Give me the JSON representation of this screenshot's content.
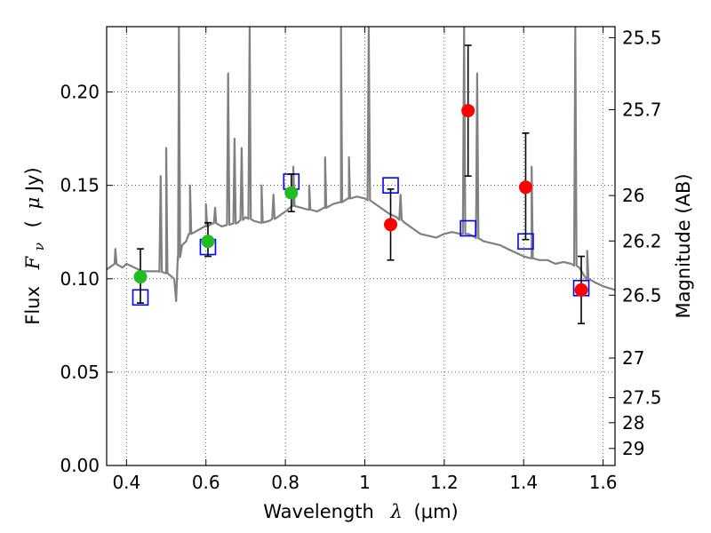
{
  "chart_data": {
    "type": "scatter",
    "xlabel": {
      "text": "Wavelength",
      "symbol": "λ",
      "unit": "(μm)"
    },
    "ylabel": {
      "text": "Flux",
      "symbol": "F",
      "subscript": "ν",
      "unit_open": "(",
      "unit_mu": "μ",
      "unit": "Jy)"
    },
    "y2label": "Magnitude (AB)",
    "xlim": [
      0.35,
      1.63
    ],
    "ylim": [
      0.0,
      0.235
    ],
    "grid": true,
    "x_ticks": [
      "0.4",
      "0.6",
      "0.8",
      "1",
      "1.2",
      "1.4",
      "1.6"
    ],
    "x_tick_values": [
      0.4,
      0.6,
      0.8,
      1.0,
      1.2,
      1.4,
      1.6
    ],
    "y_ticks": [
      "0.00",
      "0.05",
      "0.10",
      "0.15",
      "0.20"
    ],
    "y_tick_values": [
      0.0,
      0.05,
      0.1,
      0.15,
      0.2
    ],
    "y2_ticks": [
      "25.5",
      "25.7",
      "26",
      "26.2",
      "26.5",
      "27",
      "27.5",
      "28",
      "29"
    ],
    "y2_tick_values": [
      25.5,
      25.7,
      26.0,
      26.2,
      26.5,
      27.0,
      27.5,
      28.0,
      29.0
    ],
    "colors": {
      "sed": "#808080",
      "model": "#0000ff",
      "optical": "#22bb22",
      "nir": "#ff0000",
      "errbar": "#000000"
    },
    "series": [
      {
        "kind": "line",
        "x": [
          0.35,
          0.37,
          0.39,
          0.4,
          0.42,
          0.44,
          0.46,
          0.48,
          0.5,
          0.52,
          0.525,
          0.53,
          0.54,
          0.55,
          0.56,
          0.58,
          0.6,
          0.62,
          0.64,
          0.66,
          0.68,
          0.7,
          0.72,
          0.74,
          0.76,
          0.78,
          0.8,
          0.82,
          0.84,
          0.86,
          0.88,
          0.9,
          0.92,
          0.94,
          0.96,
          0.98,
          1.0,
          1.02,
          1.04,
          1.06,
          1.08,
          1.1,
          1.12,
          1.14,
          1.16,
          1.18,
          1.2,
          1.22,
          1.24,
          1.26,
          1.28,
          1.3,
          1.32,
          1.34,
          1.36,
          1.38,
          1.4,
          1.42,
          1.44,
          1.46,
          1.48,
          1.5,
          1.52,
          1.54,
          1.56,
          1.58,
          1.6,
          1.63
        ],
        "y": [
          0.105,
          0.108,
          0.106,
          0.108,
          0.106,
          0.104,
          0.104,
          0.104,
          0.103,
          0.1,
          0.088,
          0.11,
          0.118,
          0.12,
          0.124,
          0.126,
          0.128,
          0.13,
          0.128,
          0.129,
          0.13,
          0.133,
          0.131,
          0.13,
          0.131,
          0.133,
          0.136,
          0.139,
          0.138,
          0.137,
          0.136,
          0.138,
          0.14,
          0.141,
          0.143,
          0.144,
          0.143,
          0.141,
          0.138,
          0.135,
          0.133,
          0.13,
          0.127,
          0.124,
          0.123,
          0.122,
          0.124,
          0.125,
          0.124,
          0.124,
          0.122,
          0.12,
          0.119,
          0.118,
          0.116,
          0.114,
          0.112,
          0.111,
          0.11,
          0.11,
          0.108,
          0.109,
          0.108,
          0.106,
          0.1,
          0.098,
          0.096,
          0.094
        ],
        "emission_lines": [
          {
            "x": 0.372,
            "peak": 0.116
          },
          {
            "x": 0.486,
            "peak": 0.155
          },
          {
            "x": 0.5,
            "peak": 0.17
          },
          {
            "x": 0.532,
            "peak": 0.235
          },
          {
            "x": 0.56,
            "peak": 0.15
          },
          {
            "x": 0.6,
            "peak": 0.14
          },
          {
            "x": 0.623,
            "peak": 0.138
          },
          {
            "x": 0.656,
            "peak": 0.21
          },
          {
            "x": 0.672,
            "peak": 0.175
          },
          {
            "x": 0.69,
            "peak": 0.17
          },
          {
            "x": 0.71,
            "peak": 0.235
          },
          {
            "x": 0.74,
            "peak": 0.15
          },
          {
            "x": 0.77,
            "peak": 0.145
          },
          {
            "x": 0.82,
            "peak": 0.16
          },
          {
            "x": 0.86,
            "peak": 0.15
          },
          {
            "x": 0.9,
            "peak": 0.165
          },
          {
            "x": 0.94,
            "peak": 0.235
          },
          {
            "x": 0.96,
            "peak": 0.165
          },
          {
            "x": 1.01,
            "peak": 0.235
          },
          {
            "x": 1.09,
            "peak": 0.145
          },
          {
            "x": 1.25,
            "peak": 0.235
          },
          {
            "x": 1.283,
            "peak": 0.21
          },
          {
            "x": 1.42,
            "peak": 0.16
          },
          {
            "x": 1.53,
            "peak": 0.235
          },
          {
            "x": 1.56,
            "peak": 0.115
          }
        ]
      },
      {
        "kind": "open-square",
        "x": [
          0.435,
          0.605,
          0.815,
          1.065,
          1.26,
          1.405,
          1.545
        ],
        "y": [
          0.09,
          0.117,
          0.152,
          0.15,
          0.127,
          0.12,
          0.095
        ]
      },
      {
        "kind": "filled-circle",
        "group": "optical",
        "x": [
          0.435,
          0.605,
          0.815
        ],
        "y": [
          0.101,
          0.12,
          0.146
        ],
        "err_low": [
          0.014,
          0.008,
          0.01
        ],
        "err_high": [
          0.015,
          0.01,
          0.01
        ]
      },
      {
        "kind": "filled-circle",
        "group": "nir",
        "x": [
          1.065,
          1.26,
          1.405,
          1.545
        ],
        "y": [
          0.129,
          0.19,
          0.149,
          0.094
        ],
        "err_low": [
          0.019,
          0.035,
          0.028,
          0.018
        ],
        "err_high": [
          0.019,
          0.035,
          0.029,
          0.018
        ]
      }
    ]
  }
}
